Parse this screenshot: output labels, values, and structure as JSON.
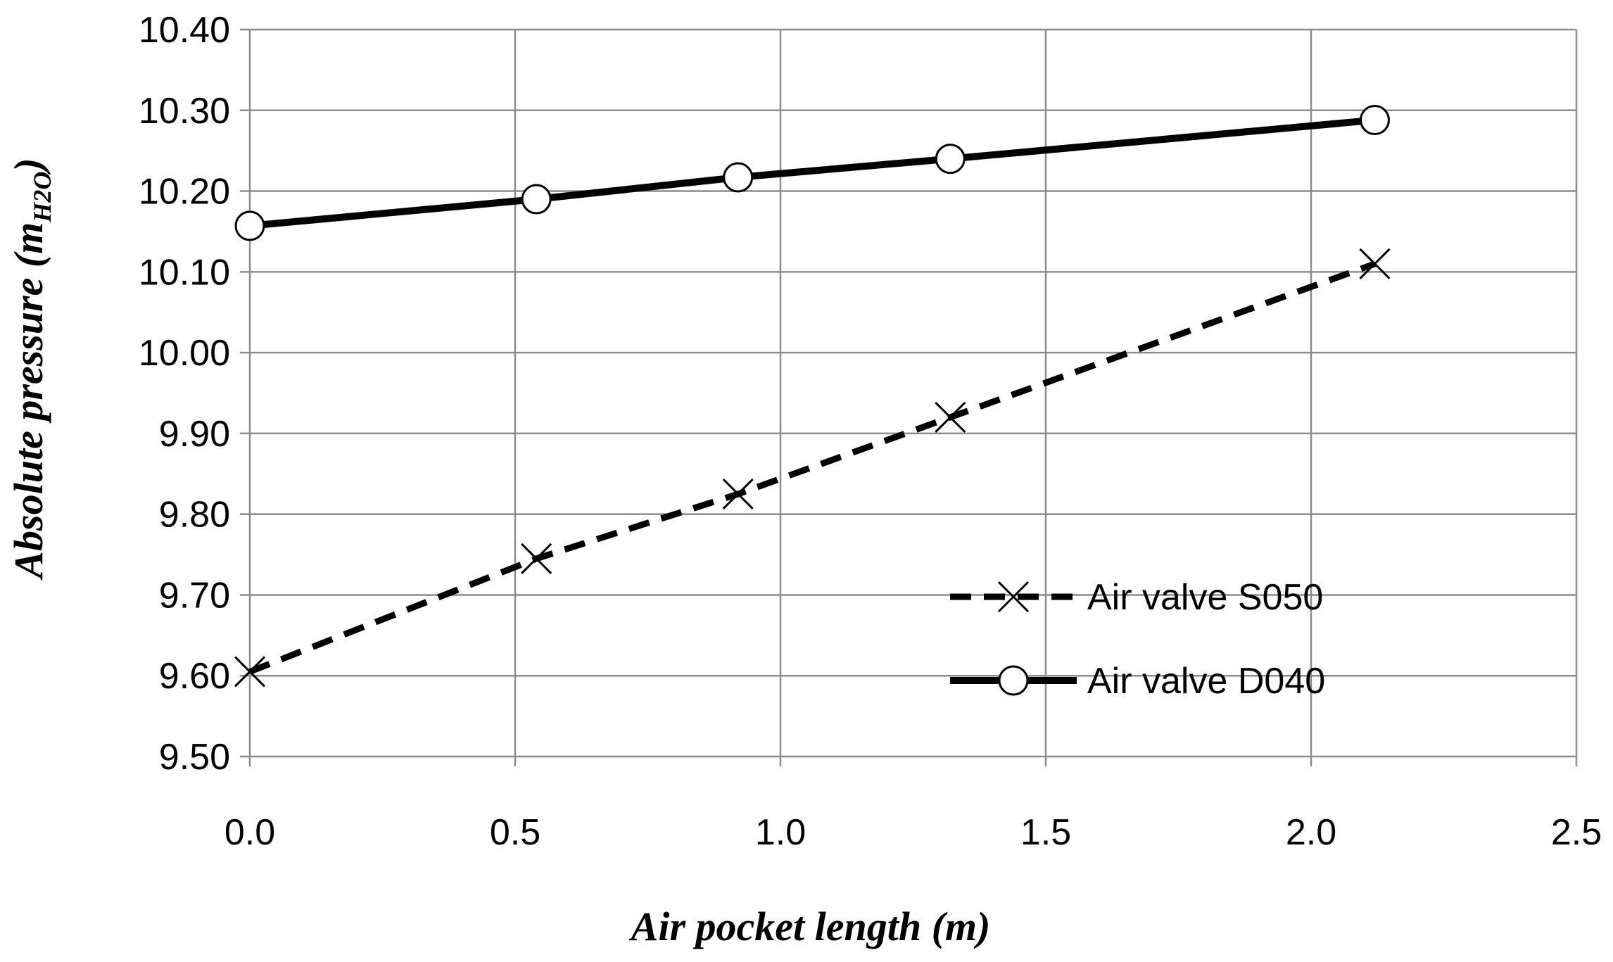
{
  "chart_data": {
    "type": "line",
    "xlabel": "Air pocket length (m)",
    "ylabel_main": "Absolute pressure (m",
    "ylabel_sub": "H2O",
    "ylabel_close": ")",
    "xlim": [
      0,
      2.5
    ],
    "ylim": [
      9.5,
      10.4
    ],
    "x_ticks": [
      "0.0",
      "0.5",
      "1.0",
      "1.5",
      "2.0",
      "2.5"
    ],
    "y_ticks": [
      "9.50",
      "9.60",
      "9.70",
      "9.80",
      "9.90",
      "10.00",
      "10.10",
      "10.20",
      "10.30",
      "10.40"
    ],
    "grid": true,
    "legend_position": "lower-right",
    "series": [
      {
        "name": "Air valve S050",
        "line_style": "dashed",
        "marker": "x",
        "color": "#000000",
        "x": [
          0.0,
          0.54,
          0.92,
          1.32,
          2.12
        ],
        "y": [
          9.605,
          9.745,
          9.825,
          9.92,
          10.11
        ]
      },
      {
        "name": "Air valve D040",
        "line_style": "solid",
        "marker": "circle",
        "color": "#000000",
        "x": [
          0.0,
          0.54,
          0.92,
          1.32,
          2.12
        ],
        "y": [
          10.157,
          10.19,
          10.217,
          10.24,
          10.288
        ]
      }
    ]
  }
}
